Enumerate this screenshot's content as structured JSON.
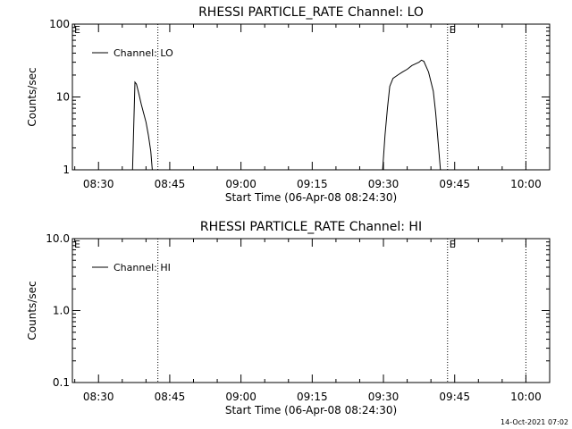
{
  "footer_timestamp": "14-Oct-2021 07:02",
  "chart_data": [
    {
      "type": "line",
      "title": "RHESSI PARTICLE_RATE Channel: LO",
      "xlabel": "Start Time (06-Apr-08 08:24:30)",
      "ylabel": "Counts/sec",
      "yscale": "log",
      "xlim": [
        "08:24:30",
        "10:05:00"
      ],
      "ylim": [
        1,
        100
      ],
      "xticks": [
        "08:30",
        "08:45",
        "09:00",
        "09:15",
        "09:30",
        "09:45",
        "10:00"
      ],
      "yticks": [
        "1",
        "10",
        "100"
      ],
      "legend": "top-left",
      "series": [
        {
          "name": "Channel: LO",
          "color": "#000000",
          "x": [
            "08:37:10",
            "08:37:40",
            "08:38:00",
            "08:38:30",
            "08:39:00",
            "08:39:30",
            "08:40:00",
            "08:40:30",
            "08:41:00",
            "08:41:20",
            "09:29:50",
            "09:30:20",
            "09:30:50",
            "09:31:20",
            "09:32:00",
            "09:33:00",
            "09:34:00",
            "09:35:00",
            "09:36:00",
            "09:37:00",
            "09:37:30",
            "09:38:00",
            "09:38:30",
            "09:39:30",
            "09:40:30",
            "09:41:00",
            "09:41:30",
            "09:42:00"
          ],
          "y": [
            1,
            16,
            15,
            11,
            8,
            6,
            4.5,
            3,
            1.8,
            1,
            1,
            3,
            7,
            14,
            18,
            20,
            22,
            24,
            27,
            29,
            30,
            32,
            31,
            22,
            12,
            6,
            2.5,
            1
          ]
        }
      ],
      "annotations": [
        {
          "text": "E",
          "x": "08:24:30"
        },
        {
          "text": "E",
          "x": "09:43:30"
        }
      ],
      "vlines": [
        "08:42:30",
        "09:43:30",
        "10:00:00"
      ]
    },
    {
      "type": "line",
      "title": "RHESSI PARTICLE_RATE Channel: HI",
      "xlabel": "Start Time (06-Apr-08 08:24:30)",
      "ylabel": "Counts/sec",
      "yscale": "log",
      "xlim": [
        "08:24:30",
        "10:05:00"
      ],
      "ylim": [
        0.1,
        10
      ],
      "xticks": [
        "08:30",
        "08:45",
        "09:00",
        "09:15",
        "09:30",
        "09:45",
        "10:00"
      ],
      "yticks": [
        "0.1",
        "1.0",
        "10.0"
      ],
      "legend": "top-left",
      "series": [
        {
          "name": "Channel: HI",
          "color": "#000000",
          "x": [],
          "y": []
        }
      ],
      "annotations": [
        {
          "text": "E",
          "x": "08:24:30"
        },
        {
          "text": "E",
          "x": "09:43:30"
        }
      ],
      "vlines": [
        "08:42:30",
        "09:43:30",
        "10:00:00"
      ]
    }
  ]
}
